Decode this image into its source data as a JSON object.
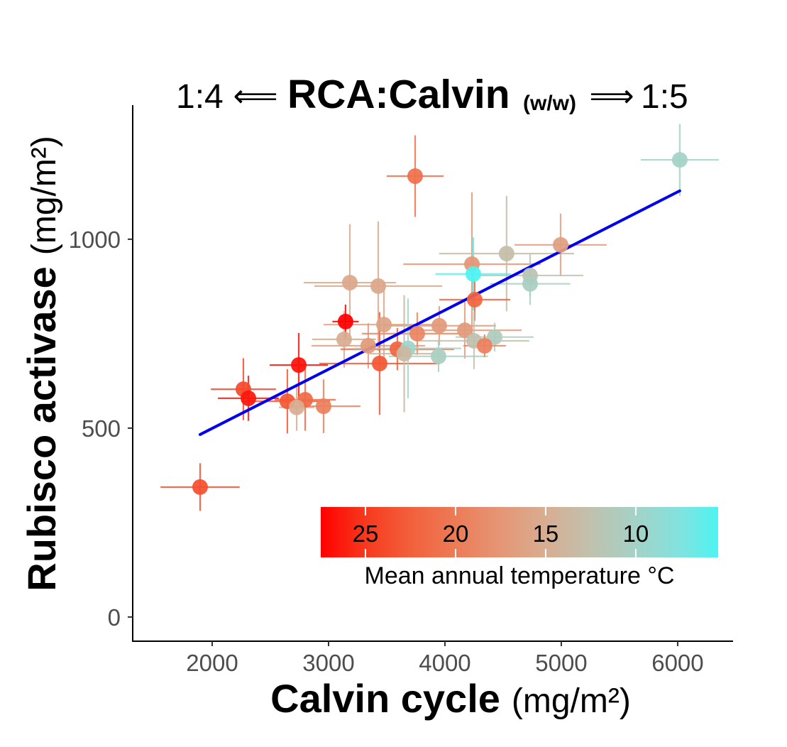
{
  "chart_data": {
    "type": "scatter",
    "title": {
      "left": "1:4",
      "left_arrow": "⟸",
      "main": "RCA:Calvin",
      "sub": "(w/w)",
      "right_arrow": "⟹",
      "right": "1:5"
    },
    "xlabel": {
      "main": "Calvin cycle",
      "unit": "(mg/m²)"
    },
    "ylabel": {
      "main": "Rubisco activase",
      "unit": "(mg/m²)"
    },
    "xlim": [
      1317,
      6476
    ],
    "ylim": [
      -64,
      1355
    ],
    "xticks": [
      2000,
      3000,
      4000,
      5000,
      6000
    ],
    "xtick_labels": [
      "2000",
      "3000",
      "4000",
      "5000",
      "6000"
    ],
    "yticks": [
      0,
      500,
      1000
    ],
    "ytick_labels": [
      "0",
      "500",
      "1000"
    ],
    "grid": false,
    "points": [
      {
        "x": 1896,
        "y": 344,
        "xerr": 340,
        "yerr": 63,
        "temp": 23.5
      },
      {
        "x": 3744,
        "y": 1167,
        "xerr": 245,
        "yerr": 108,
        "temp": 21
      },
      {
        "x": 6018,
        "y": 1210,
        "xerr": 335,
        "yerr": 95,
        "temp": 10
      },
      {
        "x": 4232,
        "y": 934,
        "xerr": 590,
        "yerr": 190,
        "temp": 17.5
      },
      {
        "x": 4244,
        "y": 908,
        "xerr": 325,
        "yerr": 97,
        "temp": 5.43
      },
      {
        "x": 4530,
        "y": 962,
        "xerr": 580,
        "yerr": 153,
        "temp": 13
      },
      {
        "x": 4994,
        "y": 985,
        "xerr": 396,
        "yerr": 83,
        "temp": 16.5
      },
      {
        "x": 4732,
        "y": 904,
        "xerr": 457,
        "yerr": 56,
        "temp": 12
      },
      {
        "x": 4732,
        "y": 882,
        "xerr": 345,
        "yerr": 56,
        "temp": 10.5
      },
      {
        "x": 4256,
        "y": 840,
        "xerr": 305,
        "yerr": 56,
        "temp": 22
      },
      {
        "x": 3183,
        "y": 885,
        "xerr": 396,
        "yerr": 155,
        "temp": 15.5
      },
      {
        "x": 3427,
        "y": 876,
        "xerr": 549,
        "yerr": 171,
        "temp": 15.5
      },
      {
        "x": 3146,
        "y": 782,
        "xerr": 113,
        "yerr": 45,
        "temp": 27.48
      },
      {
        "x": 3134,
        "y": 735,
        "xerr": 274,
        "yerr": 75,
        "temp": 15
      },
      {
        "x": 3476,
        "y": 774,
        "xerr": 518,
        "yerr": 113,
        "temp": 16
      },
      {
        "x": 3341,
        "y": 718,
        "xerr": 488,
        "yerr": 60,
        "temp": 17
      },
      {
        "x": 3591,
        "y": 709,
        "xerr": 488,
        "yerr": 56,
        "temp": 22
      },
      {
        "x": 3439,
        "y": 671,
        "xerr": 518,
        "yerr": 136,
        "temp": 23
      },
      {
        "x": 3762,
        "y": 750,
        "xerr": 475,
        "yerr": 56,
        "temp": 19
      },
      {
        "x": 3951,
        "y": 771,
        "xerr": 488,
        "yerr": 52,
        "temp": 17
      },
      {
        "x": 4171,
        "y": 759,
        "xerr": 488,
        "yerr": 75,
        "temp": 17
      },
      {
        "x": 3683,
        "y": 711,
        "xerr": 457,
        "yerr": 132,
        "temp": 9.5
      },
      {
        "x": 3945,
        "y": 690,
        "xerr": 427,
        "yerr": 41,
        "temp": 10.5
      },
      {
        "x": 4250,
        "y": 731,
        "xerr": 475,
        "yerr": 75,
        "temp": 12.5
      },
      {
        "x": 4427,
        "y": 741,
        "xerr": 335,
        "yerr": 38,
        "temp": 11
      },
      {
        "x": 4341,
        "y": 718,
        "xerr": 183,
        "yerr": 30,
        "temp": 19.5
      },
      {
        "x": 3650,
        "y": 697,
        "xerr": 300,
        "yerr": 155,
        "temp": 13.5
      },
      {
        "x": 2744,
        "y": 667,
        "xerr": 250,
        "yerr": 85,
        "temp": 26.8
      },
      {
        "x": 2268,
        "y": 603,
        "xerr": 280,
        "yerr": 82,
        "temp": 24
      },
      {
        "x": 2311,
        "y": 579,
        "xerr": 262,
        "yerr": 60,
        "temp": 26.5
      },
      {
        "x": 2646,
        "y": 571,
        "xerr": 366,
        "yerr": 85,
        "temp": 23
      },
      {
        "x": 2799,
        "y": 575,
        "xerr": 262,
        "yerr": 82,
        "temp": 21.5
      },
      {
        "x": 2726,
        "y": 555,
        "xerr": 152,
        "yerr": 62,
        "temp": 15
      },
      {
        "x": 2957,
        "y": 558,
        "xerr": 317,
        "yerr": 71,
        "temp": 19.5
      }
    ],
    "fit": {
      "type": "linear",
      "x": [
        1896,
        6018
      ],
      "y": [
        483,
        1128
      ],
      "color": "#0000ee"
    },
    "color_legend": {
      "title": "Mean annual temperature °C",
      "ticks": [
        25,
        20,
        15,
        10
      ],
      "tick_labels": [
        "25",
        "20",
        "15",
        "10"
      ],
      "range": [
        5.43,
        27.48
      ],
      "reversed": true,
      "placement": "bottom-right",
      "colorscale": [
        [
          5.43,
          "#4cf4f3"
        ],
        [
          7.5,
          "#80e3df"
        ],
        [
          10,
          "#a4d2c7"
        ],
        [
          12.5,
          "#c0c1ae"
        ],
        [
          15,
          "#d8ad92"
        ],
        [
          17.5,
          "#e59676"
        ],
        [
          20,
          "#ed7b57"
        ],
        [
          22.5,
          "#f2603b"
        ],
        [
          25,
          "#f7391e"
        ],
        [
          27.48,
          "#ff0000"
        ]
      ]
    }
  }
}
